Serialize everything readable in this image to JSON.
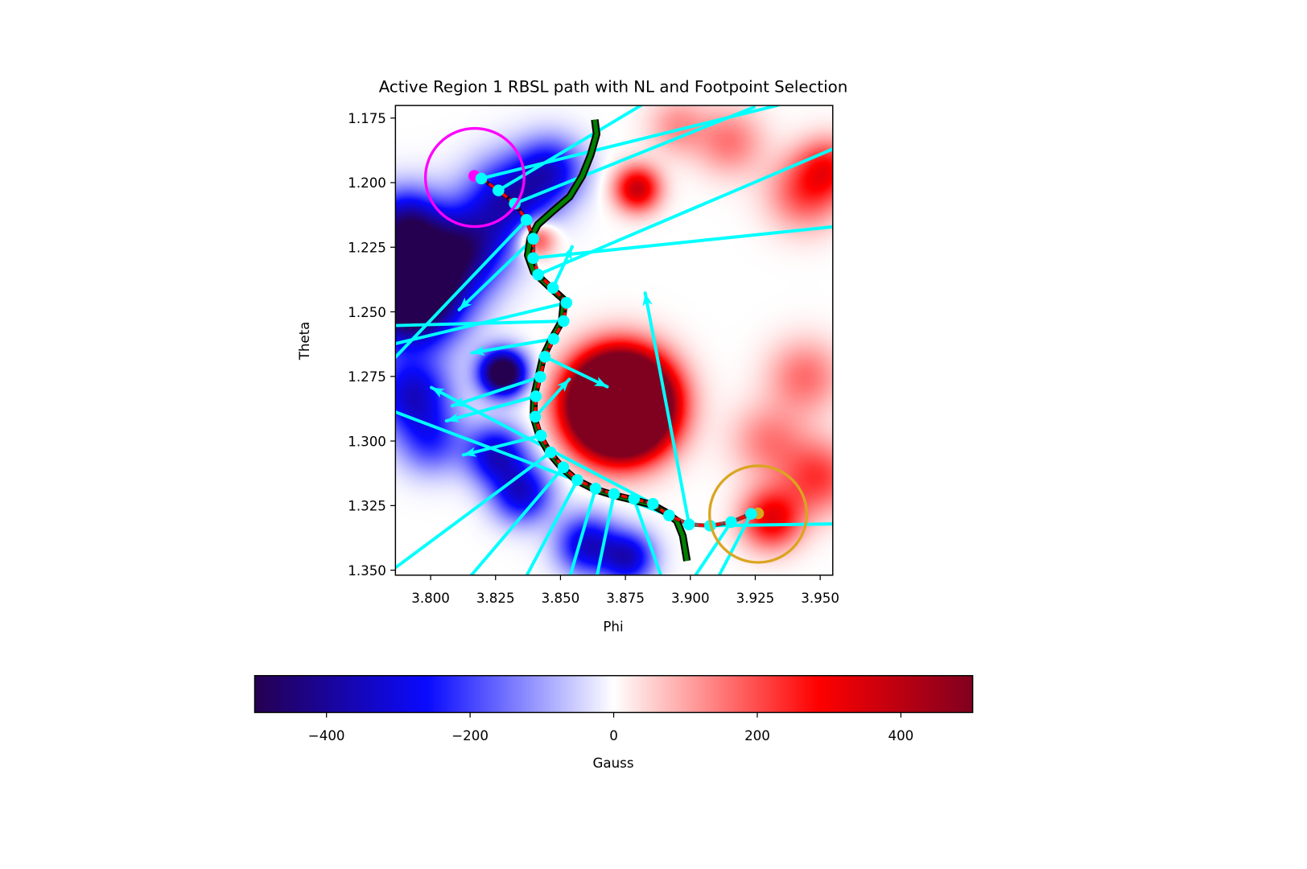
{
  "chart_data": {
    "type": "heatmap",
    "title": "Active Region 1 RBSL path with NL and Footpoint Selection",
    "xlabel": "Phi",
    "ylabel": "Theta",
    "xlim": [
      3.7865,
      3.9548
    ],
    "ylim": [
      1.352,
      1.1701
    ],
    "y_inverted": true,
    "xticks": [
      3.8,
      3.825,
      3.85,
      3.875,
      3.9,
      3.925,
      3.95
    ],
    "xtick_labels": [
      "3.800",
      "3.825",
      "3.850",
      "3.875",
      "3.900",
      "3.925",
      "3.950"
    ],
    "yticks": [
      1.175,
      1.2,
      1.225,
      1.25,
      1.275,
      1.3,
      1.325,
      1.35
    ],
    "ytick_labels": [
      "1.175",
      "1.200",
      "1.225",
      "1.250",
      "1.275",
      "1.300",
      "1.325",
      "1.350"
    ],
    "grid": false,
    "colorbar": {
      "label": "Gauss",
      "range": [
        -500,
        500
      ],
      "orientation": "horizontal",
      "placement": "bottom",
      "ticks": [
        -400,
        -200,
        0,
        200,
        400
      ],
      "tick_labels": [
        "−400",
        "−200",
        "0",
        "200",
        "400"
      ],
      "stops": [
        [
          -500,
          "#260050"
        ],
        [
          -260,
          "#0a0aff"
        ],
        [
          0,
          "#ffffff"
        ],
        [
          285,
          "#ff0000"
        ],
        [
          500,
          "#800020"
        ]
      ]
    },
    "field_sources_gauss": [
      {
        "phi": 3.7923,
        "theta": 1.2444,
        "sigma": 0.013,
        "value": -600
      },
      {
        "phi": 3.795,
        "theta": 1.23,
        "sigma": 0.014,
        "value": -330
      },
      {
        "phi": 3.79,
        "theta": 1.215,
        "sigma": 0.009,
        "value": -260
      },
      {
        "phi": 3.83,
        "theta": 1.206,
        "sigma": 0.011,
        "value": -330
      },
      {
        "phi": 3.846,
        "theta": 1.195,
        "sigma": 0.009,
        "value": -280
      },
      {
        "phi": 3.815,
        "theta": 1.225,
        "sigma": 0.011,
        "value": -300
      },
      {
        "phi": 3.8277,
        "theta": 1.2735,
        "sigma": 0.006,
        "value": -650
      },
      {
        "phi": 3.793,
        "theta": 1.282,
        "sigma": 0.01,
        "value": -320
      },
      {
        "phi": 3.8,
        "theta": 1.3,
        "sigma": 0.009,
        "value": -200
      },
      {
        "phi": 3.825,
        "theta": 1.305,
        "sigma": 0.008,
        "value": -330
      },
      {
        "phi": 3.835,
        "theta": 1.32,
        "sigma": 0.008,
        "value": -320
      },
      {
        "phi": 3.86,
        "theta": 1.34,
        "sigma": 0.008,
        "value": -330
      },
      {
        "phi": 3.876,
        "theta": 1.345,
        "sigma": 0.007,
        "value": -330
      },
      {
        "phi": 3.8729,
        "theta": 1.2858,
        "sigma": 0.012,
        "value": 2000
      },
      {
        "phi": 3.8794,
        "theta": 1.2022,
        "sigma": 0.006,
        "value": 380
      },
      {
        "phi": 3.8406,
        "theta": 1.2217,
        "sigma": 0.005,
        "value": 260
      },
      {
        "phi": 3.944,
        "theta": 1.2038,
        "sigma": 0.01,
        "value": 200
      },
      {
        "phi": 3.953,
        "theta": 1.194,
        "sigma": 0.008,
        "value": 220
      },
      {
        "phi": 3.931,
        "theta": 1.33,
        "sigma": 0.008,
        "value": 320
      },
      {
        "phi": 3.949,
        "theta": 1.314,
        "sigma": 0.01,
        "value": 220
      },
      {
        "phi": 3.915,
        "theta": 1.184,
        "sigma": 0.009,
        "value": 150
      },
      {
        "phi": 3.944,
        "theta": 1.275,
        "sigma": 0.01,
        "value": 160
      },
      {
        "phi": 3.93,
        "theta": 1.3,
        "sigma": 0.01,
        "value": 140
      },
      {
        "phi": 3.895,
        "theta": 1.178,
        "sigma": 0.008,
        "value": 120
      }
    ],
    "rbsl_path": [
      [
        3.8195,
        1.1984
      ],
      [
        3.8261,
        1.203
      ],
      [
        3.8324,
        1.2081
      ],
      [
        3.8369,
        1.2144
      ],
      [
        3.8395,
        1.2217
      ],
      [
        3.8395,
        1.2292
      ],
      [
        3.8414,
        1.2356
      ],
      [
        3.8471,
        1.2407
      ],
      [
        3.8523,
        1.2465
      ],
      [
        3.8512,
        1.2536
      ],
      [
        3.8473,
        1.2605
      ],
      [
        3.844,
        1.2674
      ],
      [
        3.8422,
        1.2752
      ],
      [
        3.8405,
        1.2827
      ],
      [
        3.8403,
        1.2906
      ],
      [
        3.8425,
        1.2979
      ],
      [
        3.8462,
        1.3044
      ],
      [
        3.8511,
        1.3102
      ],
      [
        3.8565,
        1.3151
      ],
      [
        3.8635,
        1.3184
      ],
      [
        3.8706,
        1.3205
      ],
      [
        3.8783,
        1.3224
      ],
      [
        3.8856,
        1.3243
      ],
      [
        3.8918,
        1.3288
      ],
      [
        3.8995,
        1.3323
      ],
      [
        3.9076,
        1.3328
      ],
      [
        3.9157,
        1.3314
      ],
      [
        3.9234,
        1.3282
      ]
    ],
    "neutral_line": [
      [
        3.8632,
        1.1756
      ],
      [
        3.8639,
        1.1812
      ],
      [
        3.8616,
        1.1893
      ],
      [
        3.8584,
        1.1974
      ],
      [
        3.8535,
        1.2055
      ],
      [
        3.8471,
        1.211
      ],
      [
        3.8413,
        1.2162
      ],
      [
        3.8384,
        1.2217
      ],
      [
        3.8374,
        1.2281
      ],
      [
        3.8397,
        1.2346
      ],
      [
        3.8455,
        1.2401
      ],
      [
        3.8513,
        1.2453
      ],
      [
        3.8505,
        1.2536
      ],
      [
        3.8466,
        1.2605
      ],
      [
        3.8433,
        1.2674
      ],
      [
        3.8415,
        1.2752
      ],
      [
        3.8398,
        1.2827
      ],
      [
        3.8396,
        1.2906
      ],
      [
        3.8418,
        1.2979
      ],
      [
        3.8455,
        1.3044
      ],
      [
        3.8504,
        1.3102
      ],
      [
        3.856,
        1.3151
      ],
      [
        3.8632,
        1.3187
      ],
      [
        3.8706,
        1.321
      ],
      [
        3.8783,
        1.3229
      ],
      [
        3.8856,
        1.3248
      ],
      [
        3.8906,
        1.3276
      ],
      [
        3.8948,
        1.3309
      ],
      [
        3.8971,
        1.3367
      ],
      [
        3.8987,
        1.3464
      ]
    ],
    "field_vectors": [
      {
        "from": 0,
        "tip": [
          3.9335,
          1.1701
        ],
        "arrow": false
      },
      {
        "from": 1,
        "tip": [
          3.881,
          1.1701
        ],
        "arrow": false
      },
      {
        "from": 2,
        "tip": [
          3.9245,
          1.1708
        ],
        "arrow": false
      },
      {
        "from": 3,
        "tip": [
          3.7865,
          1.2675
        ],
        "arrow": false
      },
      {
        "from": 4,
        "tip": [
          3.811,
          1.2492
        ],
        "arrow": true
      },
      {
        "from": 5,
        "tip": [
          3.9548,
          1.2171
        ],
        "arrow": false
      },
      {
        "from": 6,
        "tip": [
          3.9548,
          1.187
        ],
        "arrow": false
      },
      {
        "from": 7,
        "tip": [
          3.8545,
          1.2248
        ],
        "arrow": true
      },
      {
        "from": 8,
        "tip": [
          3.7865,
          1.2623
        ],
        "arrow": false
      },
      {
        "from": 9,
        "tip": [
          3.7865,
          1.2553
        ],
        "arrow": false
      },
      {
        "from": 10,
        "tip": [
          3.8159,
          1.2659
        ],
        "arrow": true
      },
      {
        "from": 11,
        "tip": [
          3.868,
          1.279
        ],
        "arrow": true
      },
      {
        "from": 12,
        "tip": [
          3.8083,
          1.2864
        ],
        "arrow": true
      },
      {
        "from": 13,
        "tip": [
          3.8061,
          1.2922
        ],
        "arrow": true
      },
      {
        "from": 14,
        "tip": [
          3.8534,
          1.2761
        ],
        "arrow": true
      },
      {
        "from": 15,
        "tip": [
          3.8126,
          1.3054
        ],
        "arrow": true
      },
      {
        "from": 16,
        "tip": [
          3.7865,
          1.349
        ],
        "arrow": false
      },
      {
        "from": 17,
        "tip": [
          3.8148,
          1.353
        ],
        "arrow": false
      },
      {
        "from": 18,
        "tip": [
          3.8365,
          1.353
        ],
        "arrow": false
      },
      {
        "from": 19,
        "tip": [
          3.8535,
          1.353
        ],
        "arrow": false
      },
      {
        "from": 20,
        "tip": [
          3.8639,
          1.353
        ],
        "arrow": false
      },
      {
        "from": 21,
        "tip": [
          3.889,
          1.353
        ],
        "arrow": false
      },
      {
        "from": 22,
        "tip": [
          3.8003,
          1.2793
        ],
        "arrow": true
      },
      {
        "from": 23,
        "tip": [
          3.7865,
          1.2888
        ],
        "arrow": false
      },
      {
        "from": 24,
        "tip": [
          3.8826,
          1.2427
        ],
        "arrow": true
      },
      {
        "from": 25,
        "tip": [
          3.9548,
          1.3321
        ],
        "arrow": false
      },
      {
        "from": 26,
        "tip": [
          3.9013,
          1.353
        ],
        "arrow": false
      },
      {
        "from": 27,
        "tip": [
          3.9106,
          1.353
        ],
        "arrow": false
      }
    ],
    "start_footpoint": {
      "phi": 3.8168,
      "theta": 1.1974
    },
    "end_footpoint": {
      "phi": 3.9261,
      "theta": 1.328
    },
    "start_circle": {
      "phi": 3.817,
      "theta": 1.198,
      "radius": 0.019
    },
    "end_circle": {
      "phi": 3.9261,
      "theta": 1.3283,
      "radius": 0.0187
    }
  },
  "colors": {
    "vectors": "#00ffff",
    "path": "#ff0000",
    "neutral_line": "#008000",
    "neutral_outline": "#000000",
    "start": "#ff00ff",
    "end": "#daa520"
  }
}
